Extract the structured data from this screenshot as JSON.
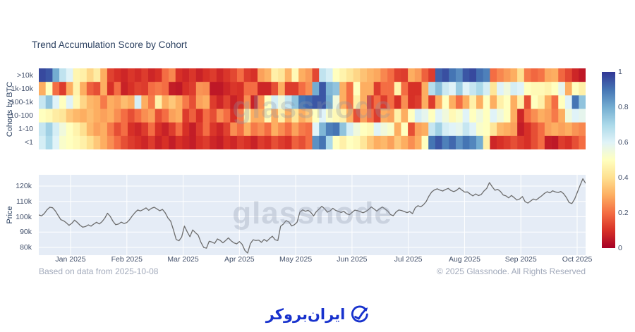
{
  "page": {
    "title": "Trend Accumulation Score by Cohort"
  },
  "watermark": {
    "text": "glassnode"
  },
  "footer": {
    "left": "Based on data from 2025-10-08",
    "right": "© 2025 Glassnode. All Rights Reserved"
  },
  "logo": {
    "text": "ایران‌بروکر"
  },
  "colors": {
    "plot_bg": "#e5ecf6",
    "grid": "#ffffff",
    "price_line": "#6d6d6d",
    "title_text": "#2a3f5f",
    "tick_text": "#42506b",
    "footer_text": "#a2aabb",
    "logo_blue": "#1832cd",
    "watermark": "rgba(140,150,168,0.30)",
    "colormap_rdylbu": [
      "#a50026",
      "#d73027",
      "#f46d43",
      "#fdae61",
      "#fee090",
      "#ffffbf",
      "#e0f3f8",
      "#abd9e9",
      "#74add1",
      "#4575b4",
      "#313695"
    ]
  },
  "chart_data": [
    {
      "type": "heatmap",
      "title": "Trend Accumulation Score by Cohort",
      "ylabel": "Cohorts by BTC",
      "rows": [
        ">10k",
        "1k-10k",
        "100-1k",
        "10-100",
        "1-10",
        "<1"
      ],
      "zmin": 0,
      "zmax": 1,
      "colorbar_ticks": [
        "1",
        "0.8",
        "0.6",
        "0.4",
        "0.2",
        "0"
      ],
      "values": [
        [
          0.97,
          0.95,
          0.8,
          0.66,
          0.6,
          0.47,
          0.45,
          0.38,
          0.44,
          0.3,
          0.13,
          0.1,
          0.08,
          0.11,
          0.09,
          0.12,
          0.08,
          0.1,
          0.2,
          0.24,
          0.1,
          0.08,
          0.11,
          0.07,
          0.1,
          0.12,
          0.08,
          0.11,
          0.14,
          0.2,
          0.12,
          0.1,
          0.28,
          0.31,
          0.45,
          0.42,
          0.31,
          0.48,
          0.3,
          0.27,
          0.14,
          0.66,
          0.62,
          0.5,
          0.46,
          0.42,
          0.38,
          0.34,
          0.31,
          0.29,
          0.24,
          0.2,
          0.13,
          0.12,
          0.3,
          0.27,
          0.18,
          0.12,
          0.93,
          0.96,
          0.9,
          0.86,
          0.95,
          0.97,
          0.91,
          0.88,
          0.2,
          0.24,
          0.27,
          0.3,
          0.4,
          0.22,
          0.19,
          0.21,
          0.29,
          0.3,
          0.19,
          0.14,
          0.08,
          0.05
        ],
        [
          0.3,
          0.5,
          0.2,
          0.12,
          0.3,
          0.46,
          0.3,
          0.18,
          0.15,
          0.3,
          0.1,
          0.2,
          0.07,
          0.1,
          0.13,
          0.12,
          0.2,
          0.22,
          0.2,
          0.06,
          0.05,
          0.1,
          0.12,
          0.26,
          0.25,
          0.05,
          0.05,
          0.08,
          0.11,
          0.1,
          0.2,
          0.2,
          0.08,
          0.08,
          0.15,
          0.3,
          0.12,
          0.12,
          0.2,
          0.25,
          0.8,
          0.95,
          0.78,
          0.75,
          0.3,
          0.2,
          0.5,
          0.3,
          0.3,
          0.12,
          0.2,
          0.2,
          0.46,
          0.2,
          0.1,
          0.1,
          0.3,
          0.68,
          0.76,
          0.64,
          0.6,
          0.73,
          0.6,
          0.65,
          0.7,
          0.62,
          0.42,
          0.6,
          0.55,
          0.62,
          0.6,
          0.5,
          0.48,
          0.48,
          0.46,
          0.5,
          0.58,
          0.3,
          0.5,
          0.45
        ],
        [
          0.65,
          0.75,
          0.6,
          0.5,
          0.6,
          0.48,
          0.38,
          0.32,
          0.3,
          0.22,
          0.3,
          0.28,
          0.33,
          0.3,
          0.62,
          0.3,
          0.22,
          0.45,
          0.3,
          0.35,
          0.3,
          0.22,
          0.15,
          0.28,
          0.3,
          0.12,
          0.08,
          0.13,
          0.07,
          0.1,
          0.25,
          0.07,
          0.25,
          0.5,
          0.62,
          0.55,
          0.65,
          0.75,
          0.9,
          0.92,
          0.95,
          0.95,
          0.8,
          0.55,
          0.3,
          0.2,
          0.45,
          0.3,
          0.12,
          0.2,
          0.12,
          0.2,
          0.1,
          0.25,
          0.1,
          0.12,
          0.3,
          0.12,
          0.3,
          0.5,
          0.3,
          0.2,
          0.3,
          0.45,
          0.3,
          0.5,
          0.3,
          0.45,
          0.5,
          0.3,
          0.45,
          0.15,
          0.5,
          0.45,
          0.3,
          0.2,
          0.5,
          0.6,
          0.9,
          0.75
        ],
        [
          0.5,
          0.48,
          0.44,
          0.42,
          0.35,
          0.32,
          0.3,
          0.33,
          0.3,
          0.28,
          0.3,
          0.25,
          0.2,
          0.15,
          0.2,
          0.25,
          0.28,
          0.15,
          0.2,
          0.28,
          0.3,
          0.12,
          0.18,
          0.1,
          0.2,
          0.15,
          0.25,
          0.2,
          0.1,
          0.22,
          0.45,
          0.3,
          0.3,
          0.48,
          0.3,
          0.45,
          0.3,
          0.42,
          0.3,
          0.35,
          0.5,
          0.6,
          0.52,
          0.48,
          0.45,
          0.3,
          0.15,
          0.28,
          0.2,
          0.12,
          0.3,
          0.28,
          0.45,
          0.3,
          0.5,
          0.62,
          0.58,
          0.5,
          0.6,
          0.55,
          0.48,
          0.52,
          0.6,
          0.5,
          0.55,
          0.5,
          0.6,
          0.55,
          0.5,
          0.3,
          0.08,
          0.2,
          0.25,
          0.3,
          0.28,
          0.22,
          0.3,
          0.55,
          0.6,
          0.58
        ],
        [
          0.65,
          0.72,
          0.62,
          0.55,
          0.5,
          0.46,
          0.4,
          0.32,
          0.28,
          0.3,
          0.22,
          0.15,
          0.2,
          0.1,
          0.08,
          0.12,
          0.2,
          0.1,
          0.07,
          0.12,
          0.2,
          0.1,
          0.06,
          0.12,
          0.2,
          0.11,
          0.08,
          0.13,
          0.25,
          0.2,
          0.3,
          0.22,
          0.25,
          0.2,
          0.3,
          0.25,
          0.2,
          0.28,
          0.22,
          0.2,
          0.6,
          0.78,
          0.88,
          0.9,
          0.75,
          0.62,
          0.55,
          0.5,
          0.48,
          0.6,
          0.55,
          0.52,
          0.3,
          0.5,
          0.15,
          0.28,
          0.3,
          0.65,
          0.72,
          0.62,
          0.6,
          0.58,
          0.65,
          0.6,
          0.52,
          0.5,
          0.42,
          0.32,
          0.3,
          0.28,
          0.06,
          0.1,
          0.15,
          0.2,
          0.28,
          0.3,
          0.28,
          0.3,
          0.26,
          0.24
        ],
        [
          0.62,
          0.7,
          0.6,
          0.52,
          0.5,
          0.48,
          0.45,
          0.4,
          0.35,
          0.3,
          0.25,
          0.2,
          0.15,
          0.12,
          0.1,
          0.08,
          0.12,
          0.07,
          0.1,
          0.06,
          0.1,
          0.08,
          0.06,
          0.1,
          0.12,
          0.08,
          0.06,
          0.1,
          0.08,
          0.12,
          0.1,
          0.07,
          0.12,
          0.1,
          0.15,
          0.12,
          0.1,
          0.18,
          0.15,
          0.2,
          0.85,
          0.9,
          0.7,
          0.5,
          0.45,
          0.5,
          0.48,
          0.42,
          0.35,
          0.3,
          0.32,
          0.28,
          0.35,
          0.3,
          0.25,
          0.3,
          0.5,
          0.9,
          0.95,
          0.88,
          0.92,
          0.85,
          0.9,
          0.87,
          0.8,
          0.45,
          0.08,
          0.1,
          0.12,
          0.15,
          0.12,
          0.1,
          0.15,
          0.2,
          0.06,
          0.05,
          0.12,
          0.1,
          0.15,
          0.2
        ]
      ]
    },
    {
      "type": "line",
      "ylabel": "Price",
      "x_ticks": [
        "Jan 2025",
        "Feb 2025",
        "Mar 2025",
        "Apr 2025",
        "May 2025",
        "Jun 2025",
        "Jul 2025",
        "Aug 2025",
        "Sep 2025",
        "Oct 2025"
      ],
      "y_ticks": [
        {
          "label": "120k",
          "value": 120
        },
        {
          "label": "110k",
          "value": 110
        },
        {
          "label": "100k",
          "value": 100
        },
        {
          "label": "90k",
          "value": 90
        },
        {
          "label": "80k",
          "value": 80
        }
      ],
      "ylim": [
        75,
        127.5
      ],
      "unit": "k USD",
      "values": [
        101.2,
        100.6,
        102.1,
        104.6,
        106.2,
        105.9,
        103.8,
        100.9,
        98.1,
        97.4,
        96.1,
        94.4,
        95.7,
        97.8,
        96.3,
        94.5,
        93.2,
        93.6,
        94.7,
        93.9,
        95.2,
        96.4,
        95.3,
        96.8,
        99.1,
        102.3,
        100.2,
        97.0,
        94.8,
        95.2,
        96.5,
        95.6,
        96.2,
        98.0,
        100.5,
        102.7,
        104.4,
        103.8,
        104.7,
        105.8,
        104.2,
        105.5,
        106.2,
        105.1,
        103.9,
        104.8,
        102.6,
        99.2,
        97.1,
        91.5,
        85.2,
        84.3,
        86.8,
        93.9,
        90.2,
        87.0,
        91.4,
        89.6,
        88.0,
        83.3,
        80.0,
        79.5,
        84.0,
        83.5,
        82.6,
        85.5,
        84.6,
        83.0,
        84.5,
        86.2,
        84.3,
        83.0,
        82.3,
        83.8,
        82.0,
        78.0,
        76.3,
        82.5,
        85.0,
        84.5,
        84.8,
        83.3,
        85.2,
        84.0,
        85.8,
        87.3,
        85.0,
        84.5,
        93.8,
        95.2,
        97.5,
        96.6,
        94.0,
        94.8,
        96.5,
        103.0,
        104.5,
        103.6,
        104.2,
        102.8,
        100.5,
        103.3,
        105.0,
        106.8,
        105.3,
        103.0,
        103.8,
        105.5,
        104.2,
        103.5,
        102.8,
        103.5,
        102.0,
        101.3,
        102.8,
        104.3,
        104.0,
        103.3,
        102.6,
        103.4,
        104.7,
        106.4,
        105.1,
        103.7,
        105.1,
        106.4,
        105.1,
        103.7,
        101.4,
        100.7,
        103.1,
        104.4,
        104.1,
        103.4,
        102.7,
        103.4,
        102.0,
        105.8,
        107.2,
        106.5,
        107.8,
        110.0,
        113.5,
        116.2,
        117.5,
        118.2,
        117.4,
        116.8,
        117.8,
        118.5,
        117.1,
        116.4,
        117.2,
        118.8,
        117.4,
        116.1,
        116.2,
        114.8,
        113.6,
        114.9,
        113.8,
        114.5,
        116.8,
        118.5,
        122.3,
        119.6,
        117.3,
        117.9,
        116.5,
        114.2,
        113.6,
        112.3,
        113.9,
        112.5,
        110.9,
        111.6,
        113.2,
        109.8,
        108.9,
        110.3,
        111.6,
        110.9,
        112.3,
        113.6,
        115.2,
        116.3,
        115.6,
        116.9,
        116.2,
        115.8,
        116.5,
        115.1,
        112.6,
        109.3,
        108.6,
        111.5,
        116.0,
        120.5,
        124.8,
        121.8
      ]
    }
  ]
}
